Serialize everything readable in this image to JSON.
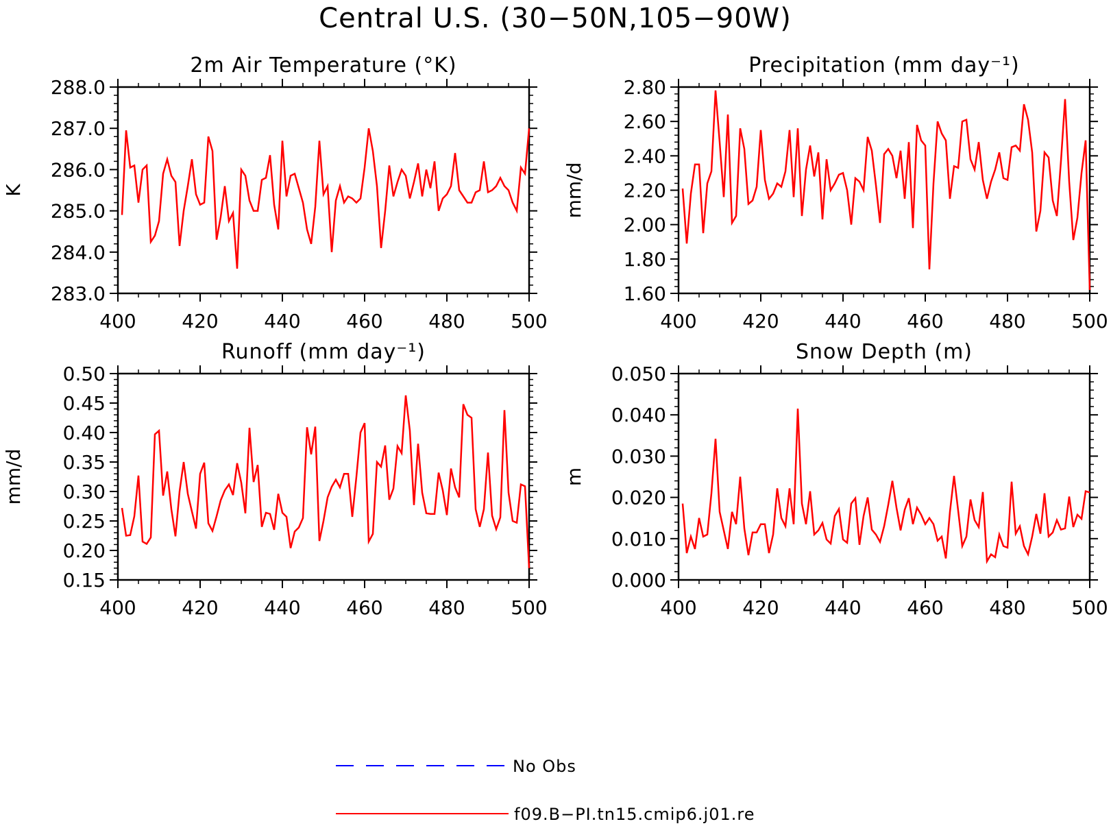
{
  "figure": {
    "title": "Central U.S. (30−50N,105−90W)"
  },
  "legend": {
    "items": [
      {
        "label": "No Obs",
        "color": "#0000ff",
        "style": "dashed"
      },
      {
        "label": "f09.B−PI.tn15.cmip6.j01.re",
        "color": "#ff0000",
        "style": "solid"
      }
    ]
  },
  "series_color": "#ff0000",
  "chart_data": [
    {
      "type": "line",
      "title": "2m Air Temperature (°K)",
      "ylabel": "K",
      "xlabel": "",
      "xlim": [
        400,
        500
      ],
      "ylim": [
        283.0,
        288.0
      ],
      "xticks": [
        400,
        420,
        440,
        460,
        480,
        500
      ],
      "yticks": [
        283.0,
        284.0,
        285.0,
        286.0,
        287.0,
        288.0
      ],
      "ytick_decimals": 1,
      "x_start": 401,
      "series": [
        {
          "values": [
            284.9,
            286.95,
            286.05,
            286.1,
            285.2,
            286.0,
            286.1,
            284.25,
            284.4,
            284.75,
            285.9,
            286.25,
            285.85,
            285.7,
            284.15,
            285.0,
            285.6,
            286.25,
            285.4,
            285.15,
            285.2,
            286.8,
            286.45,
            284.3,
            284.85,
            285.6,
            284.75,
            284.95,
            283.6,
            286.0,
            285.85,
            285.25,
            285.0,
            285.0,
            285.75,
            285.8,
            286.35,
            285.15,
            284.55,
            286.7,
            285.35,
            285.85,
            285.9,
            285.55,
            285.2,
            284.55,
            284.2,
            285.1,
            286.7,
            285.4,
            285.6,
            284.0,
            285.25,
            285.6,
            285.2,
            285.35,
            285.3,
            285.2,
            285.3,
            286.05,
            287.0,
            286.45,
            285.6,
            284.1,
            285.0,
            286.1,
            285.35,
            285.7,
            286.0,
            285.85,
            285.3,
            285.7,
            286.15,
            285.35,
            286.0,
            285.55,
            286.2,
            285.0,
            285.3,
            285.4,
            285.6,
            286.4,
            285.5,
            285.35,
            285.2,
            285.2,
            285.45,
            285.5,
            286.2,
            285.45,
            285.5,
            285.6,
            285.8,
            285.6,
            285.5,
            285.2,
            285.0,
            286.05,
            285.9,
            287.0
          ]
        }
      ]
    },
    {
      "type": "line",
      "title": "Precipitation (mm day⁻¹)",
      "ylabel": "mm/d",
      "xlabel": "",
      "xlim": [
        400,
        500
      ],
      "ylim": [
        1.6,
        2.8
      ],
      "xticks": [
        400,
        420,
        440,
        460,
        480,
        500
      ],
      "yticks": [
        1.6,
        1.8,
        2.0,
        2.2,
        2.4,
        2.6,
        2.8
      ],
      "ytick_decimals": 2,
      "x_start": 401,
      "series": [
        {
          "values": [
            2.21,
            1.89,
            2.18,
            2.35,
            2.35,
            1.95,
            2.24,
            2.31,
            2.78,
            2.48,
            2.16,
            2.64,
            2.01,
            2.05,
            2.56,
            2.44,
            2.12,
            2.14,
            2.22,
            2.55,
            2.26,
            2.15,
            2.18,
            2.24,
            2.22,
            2.31,
            2.55,
            2.16,
            2.56,
            2.05,
            2.32,
            2.46,
            2.28,
            2.42,
            2.03,
            2.38,
            2.2,
            2.24,
            2.29,
            2.3,
            2.2,
            2.0,
            2.27,
            2.25,
            2.2,
            2.51,
            2.43,
            2.23,
            2.01,
            2.41,
            2.44,
            2.4,
            2.27,
            2.43,
            2.15,
            2.48,
            1.98,
            2.58,
            2.49,
            2.46,
            1.74,
            2.24,
            2.6,
            2.53,
            2.49,
            2.15,
            2.34,
            2.33,
            2.6,
            2.61,
            2.38,
            2.32,
            2.48,
            2.26,
            2.15,
            2.25,
            2.32,
            2.42,
            2.27,
            2.26,
            2.45,
            2.46,
            2.43,
            2.7,
            2.61,
            2.42,
            1.96,
            2.08,
            2.42,
            2.39,
            2.14,
            2.05,
            2.37,
            2.73,
            2.25,
            1.91,
            2.04,
            2.3,
            2.49,
            1.62
          ]
        }
      ]
    },
    {
      "type": "line",
      "title": "Runoff (mm day⁻¹)",
      "ylabel": "mm/d",
      "xlabel": "",
      "xlim": [
        400,
        500
      ],
      "ylim": [
        0.15,
        0.5
      ],
      "xticks": [
        400,
        420,
        440,
        460,
        480,
        500
      ],
      "yticks": [
        0.15,
        0.2,
        0.25,
        0.3,
        0.35,
        0.4,
        0.45,
        0.5
      ],
      "ytick_decimals": 2,
      "x_start": 401,
      "series": [
        {
          "values": [
            0.272,
            0.225,
            0.226,
            0.258,
            0.327,
            0.215,
            0.211,
            0.222,
            0.397,
            0.403,
            0.293,
            0.334,
            0.27,
            0.224,
            0.3,
            0.35,
            0.296,
            0.266,
            0.237,
            0.33,
            0.349,
            0.246,
            0.233,
            0.258,
            0.285,
            0.302,
            0.312,
            0.294,
            0.348,
            0.315,
            0.263,
            0.408,
            0.316,
            0.345,
            0.24,
            0.264,
            0.262,
            0.235,
            0.296,
            0.264,
            0.257,
            0.204,
            0.232,
            0.239,
            0.255,
            0.409,
            0.363,
            0.41,
            0.216,
            0.25,
            0.29,
            0.308,
            0.32,
            0.307,
            0.33,
            0.33,
            0.257,
            0.325,
            0.4,
            0.416,
            0.215,
            0.228,
            0.35,
            0.342,
            0.378,
            0.286,
            0.305,
            0.377,
            0.365,
            0.463,
            0.403,
            0.277,
            0.381,
            0.298,
            0.263,
            0.262,
            0.262,
            0.332,
            0.302,
            0.26,
            0.339,
            0.307,
            0.29,
            0.448,
            0.43,
            0.425,
            0.27,
            0.24,
            0.27,
            0.366,
            0.259,
            0.236,
            0.256,
            0.438,
            0.298,
            0.25,
            0.247,
            0.312,
            0.309,
            0.17
          ]
        }
      ]
    },
    {
      "type": "line",
      "title": "Snow Depth (m)",
      "ylabel": "m",
      "xlabel": "",
      "xlim": [
        400,
        500
      ],
      "ylim": [
        0.0,
        0.05
      ],
      "xticks": [
        400,
        420,
        440,
        460,
        480,
        500
      ],
      "yticks": [
        0.0,
        0.01,
        0.02,
        0.03,
        0.04,
        0.05
      ],
      "ytick_decimals": 3,
      "x_start": 401,
      "series": [
        {
          "values": [
            0.0185,
            0.0065,
            0.0105,
            0.0075,
            0.015,
            0.0105,
            0.011,
            0.021,
            0.0342,
            0.0165,
            0.012,
            0.0075,
            0.0165,
            0.0135,
            0.025,
            0.0125,
            0.006,
            0.0115,
            0.0115,
            0.0135,
            0.0135,
            0.0065,
            0.011,
            0.0222,
            0.015,
            0.013,
            0.0222,
            0.0135,
            0.0415,
            0.0185,
            0.0135,
            0.0215,
            0.011,
            0.012,
            0.0138,
            0.0098,
            0.0088,
            0.0155,
            0.0172,
            0.0098,
            0.009,
            0.0185,
            0.0198,
            0.0085,
            0.0155,
            0.02,
            0.0122,
            0.011,
            0.0092,
            0.013,
            0.0182,
            0.024,
            0.0175,
            0.012,
            0.017,
            0.0198,
            0.0135,
            0.0175,
            0.0158,
            0.0135,
            0.015,
            0.0135,
            0.0095,
            0.0105,
            0.0052,
            0.0165,
            0.0252,
            0.0168,
            0.0082,
            0.0105,
            0.0195,
            0.0145,
            0.0128,
            0.0213,
            0.0045,
            0.0062,
            0.0055,
            0.011,
            0.0082,
            0.0078,
            0.0238,
            0.0112,
            0.013,
            0.0082,
            0.0062,
            0.0105,
            0.016,
            0.0112,
            0.021,
            0.0105,
            0.0115,
            0.0145,
            0.0122,
            0.0125,
            0.0202,
            0.0128,
            0.0158,
            0.0148,
            0.0215,
            0.0212
          ]
        }
      ]
    }
  ]
}
